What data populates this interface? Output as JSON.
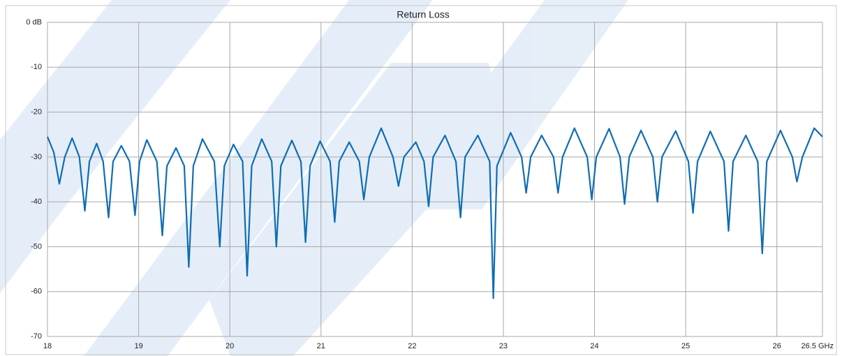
{
  "chart_data": {
    "type": "line",
    "title": "Return Loss",
    "x": [
      18.0,
      18.07,
      18.13,
      18.19,
      18.27,
      18.35,
      18.41,
      18.46,
      18.54,
      18.61,
      18.67,
      18.72,
      18.81,
      18.9,
      18.96,
      19.01,
      19.09,
      19.2,
      19.26,
      19.31,
      19.41,
      19.5,
      19.55,
      19.6,
      19.7,
      19.83,
      19.89,
      19.94,
      20.04,
      20.14,
      20.19,
      20.24,
      20.35,
      20.46,
      20.51,
      20.56,
      20.68,
      20.78,
      20.83,
      20.88,
      20.99,
      21.1,
      21.15,
      21.2,
      21.31,
      21.42,
      21.47,
      21.53,
      21.66,
      21.79,
      21.85,
      21.91,
      22.04,
      22.13,
      22.18,
      22.23,
      22.36,
      22.48,
      22.53,
      22.58,
      22.72,
      22.85,
      22.89,
      22.93,
      23.08,
      23.2,
      23.25,
      23.3,
      23.42,
      23.55,
      23.6,
      23.65,
      23.78,
      23.92,
      23.97,
      24.02,
      24.16,
      24.28,
      24.33,
      24.38,
      24.51,
      24.64,
      24.69,
      24.74,
      24.89,
      25.03,
      25.08,
      25.13,
      25.27,
      25.42,
      25.47,
      25.52,
      25.66,
      25.79,
      25.84,
      25.89,
      26.04,
      26.17,
      26.22,
      26.28,
      26.41,
      26.5
    ],
    "series": [
      {
        "color": "#0f6db3",
        "values": [
          -25.5,
          -29,
          -36,
          -30,
          -25.8,
          -30,
          -42,
          -31,
          -27,
          -31,
          -43.5,
          -31,
          -27.5,
          -31,
          -43,
          -31,
          -26.2,
          -31,
          -47.5,
          -32,
          -28,
          -32,
          -54.5,
          -32,
          -26,
          -31,
          -50,
          -32,
          -27.2,
          -31,
          -56.5,
          -32,
          -26,
          -31,
          -50,
          -32,
          -26.3,
          -31,
          -49,
          -32,
          -26.5,
          -31,
          -44.5,
          -31,
          -26.7,
          -31,
          -39.5,
          -30,
          -23.6,
          -30,
          -36.5,
          -30,
          -26.7,
          -31,
          -41,
          -30,
          -25.2,
          -31,
          -43.5,
          -30,
          -25.2,
          -31,
          -61.5,
          -32,
          -24.6,
          -30,
          -38,
          -30,
          -25.2,
          -30,
          -38,
          -30,
          -23.6,
          -30,
          -39.5,
          -30,
          -23.7,
          -30,
          -40.5,
          -30,
          -24.1,
          -30,
          -40,
          -30,
          -24.2,
          -31,
          -42.5,
          -31,
          -24.3,
          -31,
          -46.5,
          -31,
          -25.2,
          -31,
          -51.5,
          -31,
          -24.1,
          -30,
          -35.5,
          -30,
          -23.6,
          -25.5
        ]
      }
    ],
    "xlim": [
      18,
      26.5
    ],
    "ylim": [
      -70,
      0
    ],
    "xticks": [
      18,
      19,
      20,
      21,
      22,
      23,
      24,
      25,
      26,
      {
        "value": 26.5,
        "label": "26.5 GHz"
      }
    ],
    "yticks": [
      {
        "value": 0,
        "label": "0 dB"
      },
      -10,
      -20,
      -30,
      -40,
      -50,
      -60,
      -70
    ],
    "grid": true
  }
}
